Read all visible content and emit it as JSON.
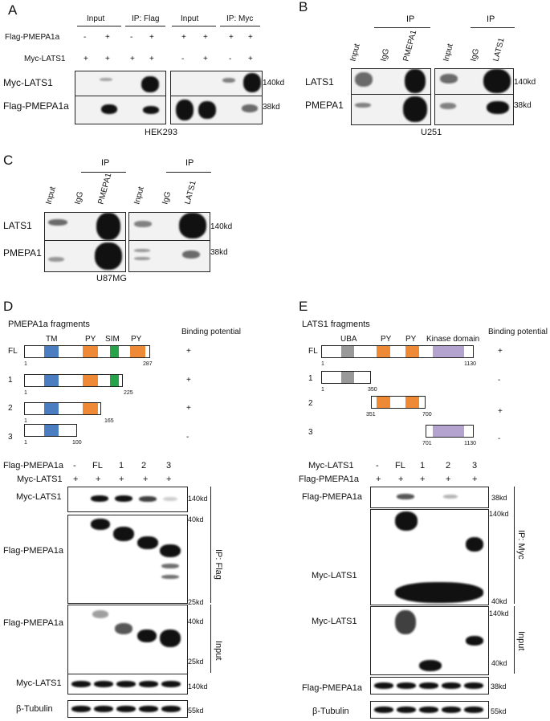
{
  "panelA": {
    "letter": "A",
    "group_labels": [
      "Input",
      "IP: Flag",
      "Input",
      "IP: Myc"
    ],
    "row1_label": "Flag-PMEPA1a",
    "row1_signs": [
      "-",
      "+",
      "-",
      "+",
      "+",
      "+",
      "+",
      "+"
    ],
    "row2_label": "Myc-LATS1",
    "row2_signs": [
      "+",
      "+",
      "+",
      "+",
      "-",
      "+",
      "-",
      "+"
    ],
    "blot_labels": [
      "Myc-LATS1",
      "Flag-PMEPA1a"
    ],
    "sizes": [
      "140kd",
      "38kd"
    ],
    "cell": "HEK293"
  },
  "panelB": {
    "letter": "B",
    "ip": "IP",
    "lanes": [
      "Input",
      "IgG",
      "PMEPA1",
      "Input",
      "IgG",
      "LATS1"
    ],
    "blot_labels": [
      "LATS1",
      "PMEPA1"
    ],
    "sizes": [
      "140kd",
      "38kd"
    ],
    "cell": "U251"
  },
  "panelC": {
    "letter": "C",
    "ip": "IP",
    "lanes": [
      "Input",
      "IgG",
      "PMEPA1",
      "Input",
      "IgG",
      "LATS1"
    ],
    "blot_labels": [
      "LATS1",
      "PMEPA1"
    ],
    "sizes": [
      "140kd",
      "38kd"
    ],
    "cell": "U87MG"
  },
  "panelD": {
    "letter": "D",
    "title": "PMEPA1a fragments",
    "binding_header": "Binding potential",
    "domains": [
      "TM",
      "PY",
      "SIM",
      "PY"
    ],
    "fragments": [
      {
        "name": "FL",
        "start": "1",
        "end": "287",
        "binding": "+"
      },
      {
        "name": "1",
        "start": "1",
        "end": "225",
        "binding": "+"
      },
      {
        "name": "2",
        "start": "1",
        "end": "165",
        "binding": "+"
      },
      {
        "name": "3",
        "start": "1",
        "end": "100",
        "binding": "-"
      }
    ],
    "row1_label": "Flag-PMEPA1a",
    "row1_signs": [
      "-",
      "FL",
      "1",
      "2",
      "3"
    ],
    "row2_label": "Myc-LATS1",
    "row2_signs": [
      "+",
      "+",
      "+",
      "+",
      "+"
    ],
    "blot_labels": [
      "Myc-LATS1",
      "Flag-PMEPA1a",
      "Flag-PMEPA1a",
      "Myc-LATS1",
      "β-Tubulin"
    ],
    "sizes": [
      "140kd",
      "40kd",
      "25kd",
      "40kd",
      "25kd",
      "140kd",
      "55kd"
    ],
    "bracket_labels": [
      "IP: Flag",
      "Input"
    ]
  },
  "panelE": {
    "letter": "E",
    "title": "LATS1 fragments",
    "binding_header": "Binding potential",
    "domains": [
      "UBA",
      "PY",
      "PY",
      "Kinase domain"
    ],
    "fragments": [
      {
        "name": "FL",
        "start": "1",
        "end": "1130",
        "binding": "+"
      },
      {
        "name": "1",
        "start": "1",
        "end": "350",
        "binding": "-"
      },
      {
        "name": "2",
        "start": "351",
        "end": "700",
        "binding": "+"
      },
      {
        "name": "3",
        "start": "701",
        "end": "1130",
        "binding": "-"
      }
    ],
    "row1_label": "Myc-LATS1",
    "row1_signs": [
      "-",
      "FL",
      "1",
      "2",
      "3"
    ],
    "row2_label": "Flag-PMEPA1a",
    "row2_signs": [
      "+",
      "+",
      "+",
      "+",
      "+"
    ],
    "blot_labels": [
      "Flag-PMEPA1a",
      "Myc-LATS1",
      "Myc-LATS1",
      "Flag-PMEPA1a",
      "β-Tubulin"
    ],
    "sizes": [
      "38kd",
      "140kd",
      "40kd",
      "140kd",
      "40kd",
      "38kd",
      "55kd"
    ],
    "bracket_labels": [
      "IP: Myc",
      "Input"
    ]
  },
  "colors": {
    "tm": "#4a7ec0",
    "py": "#ee8a35",
    "sim": "#27a34a",
    "uba": "#999999",
    "kinase": "#b4a3cf"
  }
}
